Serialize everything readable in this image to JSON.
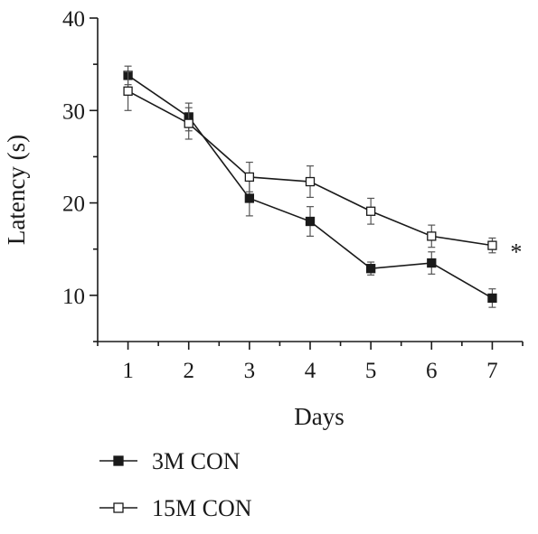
{
  "chart_data": {
    "type": "line",
    "title": "",
    "xlabel": "Days",
    "ylabel": "Latency (s)",
    "x": [
      1,
      2,
      3,
      4,
      5,
      6,
      7
    ],
    "xlim": [
      0.5,
      7.5
    ],
    "ylim": [
      5,
      40
    ],
    "yticks": [
      10,
      20,
      30,
      40
    ],
    "grid": false,
    "legend": "bottom-left",
    "series": [
      {
        "name": "3M CON",
        "marker": "filled-square",
        "color": "#1a1a1a",
        "values": [
          33.8,
          29.3,
          20.5,
          18.0,
          12.9,
          13.5,
          9.7
        ],
        "errors": [
          1.0,
          1.5,
          1.9,
          1.6,
          0.7,
          1.2,
          1.0
        ]
      },
      {
        "name": "15M CON",
        "marker": "open-square",
        "color": "#1a1a1a",
        "values": [
          32.1,
          28.6,
          22.8,
          22.3,
          19.1,
          16.4,
          15.4
        ],
        "errors": [
          2.1,
          1.7,
          1.6,
          1.7,
          1.4,
          1.2,
          0.8
        ]
      }
    ],
    "annotations": [
      {
        "text": "*",
        "x": 7,
        "series": 1
      }
    ]
  }
}
